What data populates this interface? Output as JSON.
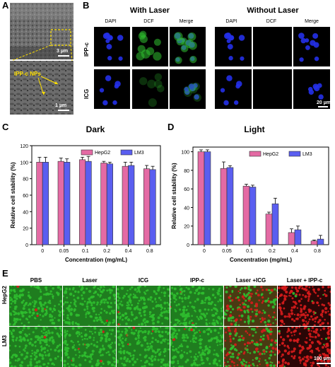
{
  "panel_letters": [
    "A",
    "B",
    "C",
    "D",
    "E"
  ],
  "panelA": {
    "scale_top": "3 µm",
    "scale_bottom": "1 µm",
    "arrow_label": "IPP-c NPs"
  },
  "panelB": {
    "group_with": "With Laser",
    "group_without": "Without Laser",
    "columns": [
      "DAPI",
      "DCF",
      "Merge"
    ],
    "rows": [
      "IPP-c",
      "ICG"
    ],
    "scale": "20 µm"
  },
  "panelE": {
    "columns": [
      "PBS",
      "Laser",
      "ICG",
      "IPP-c",
      "Laser +ICG",
      "Laser + IPP-c"
    ],
    "rows": [
      "HepG2",
      "LM3"
    ],
    "scale": "100 µm"
  },
  "colors": {
    "hepg2": "#e46aa4",
    "lm3": "#5a5ef0",
    "fluor_green": "#2fbf2f",
    "fluor_red": "#d81c1c",
    "dapi_blue": "#2430e8"
  },
  "chart_data": [
    {
      "type": "bar",
      "title": "Dark",
      "xlabel": "Concentration (mg/mL)",
      "ylabel": "Relative cell stability (%)",
      "ylim": [
        0,
        120
      ],
      "yticks": [
        0,
        20,
        40,
        60,
        80,
        100,
        120
      ],
      "categories": [
        "0",
        "0.05",
        "0.1",
        "0.2",
        "0.4",
        "0.8"
      ],
      "series": [
        {
          "name": "HepG2",
          "values": [
            100,
            101,
            103,
            99,
            95,
            92
          ],
          "errors": [
            6,
            4,
            3,
            2,
            5,
            4
          ]
        },
        {
          "name": "LM3",
          "values": [
            100,
            100,
            101,
            98,
            96,
            91
          ],
          "errors": [
            6,
            4,
            6,
            2,
            4,
            4
          ]
        }
      ],
      "legend": "top-right"
    },
    {
      "type": "bar",
      "title": "Light",
      "xlabel": "Concentration (mg/mL)",
      "ylabel": "Relative cell stability (%)",
      "ylim": [
        0,
        105
      ],
      "yticks": [
        0,
        20,
        40,
        60,
        80,
        100
      ],
      "categories": [
        "0",
        "0.05",
        "0.1",
        "0.2",
        "0.4",
        "0.8"
      ],
      "series": [
        {
          "name": "HepG2",
          "values": [
            100,
            82,
            63,
            33,
            13,
            4
          ],
          "errors": [
            2,
            7,
            2,
            2,
            4,
            1
          ]
        },
        {
          "name": "LM3",
          "values": [
            100,
            83,
            62,
            44,
            16,
            6
          ],
          "errors": [
            2,
            2,
            2,
            6,
            4,
            4
          ]
        }
      ],
      "legend": "top-right"
    }
  ]
}
